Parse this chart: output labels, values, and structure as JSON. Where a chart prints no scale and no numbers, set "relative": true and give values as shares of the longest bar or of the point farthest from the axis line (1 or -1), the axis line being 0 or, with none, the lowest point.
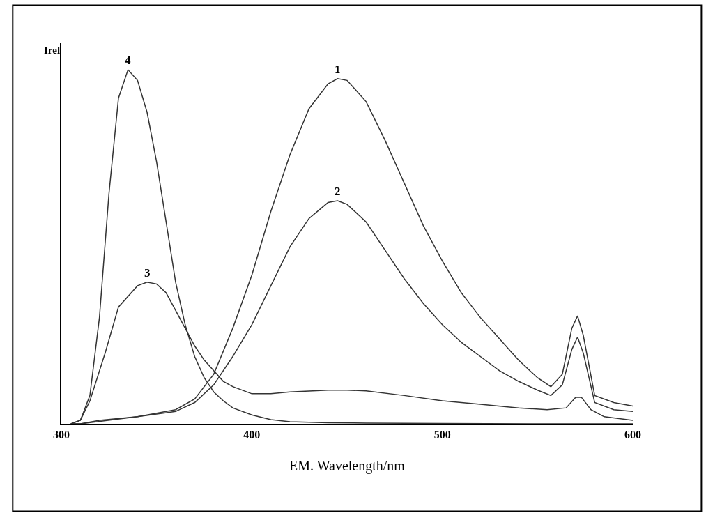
{
  "chart_data": {
    "type": "line",
    "relative": true,
    "xlabel": "EM. Wavelength/nm",
    "ylabel": "Irel",
    "xlim": [
      300,
      600
    ],
    "xticks": [
      300,
      400,
      500,
      600
    ],
    "legend": false,
    "marker": "none",
    "line_style": "solid",
    "series": [
      {
        "name": "1",
        "color": "#333333",
        "x": [
          305,
          310,
          320,
          340,
          360,
          370,
          380,
          390,
          400,
          410,
          420,
          430,
          440,
          445,
          450,
          460,
          470,
          480,
          490,
          500,
          510,
          520,
          530,
          540,
          550,
          557,
          563,
          568,
          571,
          574,
          580,
          590,
          600
        ],
        "values": [
          0,
          0,
          0.01,
          0.02,
          0.04,
          0.07,
          0.14,
          0.27,
          0.42,
          0.6,
          0.76,
          0.89,
          0.96,
          0.975,
          0.97,
          0.91,
          0.8,
          0.68,
          0.56,
          0.46,
          0.37,
          0.3,
          0.24,
          0.18,
          0.13,
          0.105,
          0.14,
          0.27,
          0.305,
          0.25,
          0.08,
          0.06,
          0.05
        ]
      },
      {
        "name": "2",
        "color": "#333333",
        "x": [
          305,
          310,
          340,
          360,
          370,
          380,
          390,
          400,
          410,
          420,
          430,
          440,
          445,
          450,
          460,
          470,
          480,
          490,
          500,
          510,
          520,
          530,
          540,
          550,
          557,
          563,
          568,
          571,
          574,
          580,
          590,
          600
        ],
        "values": [
          0,
          0,
          0.02,
          0.035,
          0.06,
          0.11,
          0.19,
          0.28,
          0.39,
          0.5,
          0.58,
          0.625,
          0.63,
          0.62,
          0.57,
          0.49,
          0.41,
          0.34,
          0.28,
          0.23,
          0.19,
          0.15,
          0.12,
          0.095,
          0.08,
          0.11,
          0.21,
          0.245,
          0.2,
          0.06,
          0.04,
          0.035
        ]
      },
      {
        "name": "3",
        "color": "#333333",
        "x": [
          305,
          310,
          315,
          323,
          330,
          340,
          345,
          350,
          355,
          360,
          365,
          370,
          375,
          380,
          385,
          390,
          400,
          410,
          420,
          440,
          450,
          460,
          480,
          500,
          520,
          540,
          555,
          565,
          570,
          573,
          578,
          585,
          600
        ],
        "values": [
          0,
          0.01,
          0.065,
          0.2,
          0.33,
          0.39,
          0.4,
          0.395,
          0.37,
          0.32,
          0.27,
          0.22,
          0.18,
          0.15,
          0.12,
          0.105,
          0.085,
          0.085,
          0.09,
          0.095,
          0.095,
          0.093,
          0.08,
          0.065,
          0.055,
          0.045,
          0.04,
          0.045,
          0.075,
          0.075,
          0.04,
          0.02,
          0.01
        ]
      },
      {
        "name": "4",
        "color": "#333333",
        "x": [
          305,
          310,
          315,
          320,
          325,
          330,
          335,
          340,
          345,
          350,
          355,
          360,
          365,
          370,
          375,
          380,
          385,
          390,
          400,
          410,
          420,
          440,
          460,
          500,
          550,
          600
        ],
        "values": [
          0,
          0.01,
          0.08,
          0.3,
          0.65,
          0.92,
          1.0,
          0.97,
          0.88,
          0.74,
          0.57,
          0.4,
          0.28,
          0.19,
          0.13,
          0.09,
          0.065,
          0.045,
          0.025,
          0.012,
          0.006,
          0.003,
          0.002,
          0.001,
          0,
          0
        ]
      }
    ]
  }
}
